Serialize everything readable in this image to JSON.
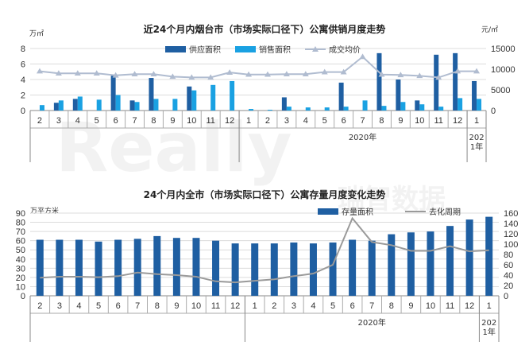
{
  "watermark": {
    "brand": "Really",
    "cn": "瑞智数据"
  },
  "chart_data": [
    {
      "type": "bar",
      "title": "近24个月内烟台市（市场实际口径下）公寓供销月度走势",
      "left_unit": "万㎡",
      "right_unit": "元/㎡",
      "categories": [
        "2",
        "3",
        "4",
        "5",
        "6",
        "7",
        "8",
        "9",
        "10",
        "11",
        "12",
        "1",
        "2",
        "3",
        "4",
        "5",
        "6",
        "7",
        "8",
        "9",
        "10",
        "11",
        "12",
        "1"
      ],
      "year_label": "2020年",
      "year_label_last": "2021年",
      "ylim_left": [
        0,
        8
      ],
      "yticks_left": [
        "0",
        "2",
        "4",
        "6",
        "8"
      ],
      "ylim_right": [
        0,
        15000
      ],
      "yticks_right": [
        "0",
        "5000",
        "10000",
        "15000"
      ],
      "series": [
        {
          "name": "供应面积",
          "axis": "left",
          "kind": "bar",
          "color": "#1f5fa2",
          "values": [
            0,
            1.0,
            1.5,
            0,
            4.5,
            1.3,
            4.2,
            0,
            3.1,
            0,
            0,
            0,
            0,
            1.7,
            0,
            0,
            3.6,
            0,
            7.4,
            4.0,
            1.3,
            7.2,
            7.4,
            3.8
          ]
        },
        {
          "name": "销售面积",
          "axis": "left",
          "kind": "bar",
          "color": "#1aa1e2",
          "values": [
            0.7,
            1.3,
            1.8,
            1.4,
            2.0,
            1.1,
            1.5,
            1.5,
            2.6,
            3.3,
            3.8,
            0.2,
            0.1,
            0.5,
            0.4,
            0.4,
            0.5,
            1.3,
            0.6,
            1.1,
            0.8,
            0.5,
            1.6,
            1.5
          ]
        },
        {
          "name": "成交均价",
          "axis": "right",
          "kind": "line",
          "color": "#b0bcd0",
          "values": [
            9500,
            9000,
            9000,
            9000,
            8500,
            8800,
            8800,
            8200,
            8000,
            8000,
            9200,
            8700,
            8700,
            8800,
            8800,
            9300,
            9300,
            13000,
            8700,
            8600,
            8400,
            8000,
            9500,
            9500
          ]
        }
      ]
    },
    {
      "type": "bar",
      "title": "24个月内全市（市场实际口径下）公寓存量月度变化走势",
      "left_unit": "万平方米",
      "categories": [
        "2",
        "3",
        "4",
        "5",
        "6",
        "7",
        "8",
        "9",
        "10",
        "11",
        "12",
        "1",
        "2",
        "3",
        "4",
        "5",
        "6",
        "7",
        "8",
        "9",
        "10",
        "11",
        "12",
        "1"
      ],
      "year_label": "2020年",
      "year_label_last": "2021年",
      "ylim_left": [
        0,
        90
      ],
      "yticks_left": [
        "0",
        "10",
        "20",
        "30",
        "40",
        "50",
        "60",
        "70",
        "80",
        "90"
      ],
      "ylim_right": [
        0,
        160
      ],
      "yticks_right": [
        "0",
        "20",
        "40",
        "60",
        "80",
        "100",
        "120",
        "140",
        "160"
      ],
      "series": [
        {
          "name": "存量面积",
          "axis": "left",
          "kind": "bar",
          "color": "#1f5fa2",
          "values": [
            61,
            61,
            61,
            59,
            61,
            62,
            65,
            63,
            63,
            60,
            57,
            57,
            57,
            58,
            57,
            58,
            61,
            60,
            67,
            69,
            70,
            76,
            83,
            86
          ]
        },
        {
          "name": "去化周期",
          "axis": "right",
          "kind": "line",
          "color": "#9a9a9a",
          "values": [
            35,
            37,
            37,
            36,
            38,
            45,
            42,
            40,
            37,
            28,
            26,
            29,
            32,
            38,
            43,
            60,
            150,
            104,
            98,
            87,
            87,
            96,
            86,
            88
          ]
        }
      ]
    }
  ]
}
